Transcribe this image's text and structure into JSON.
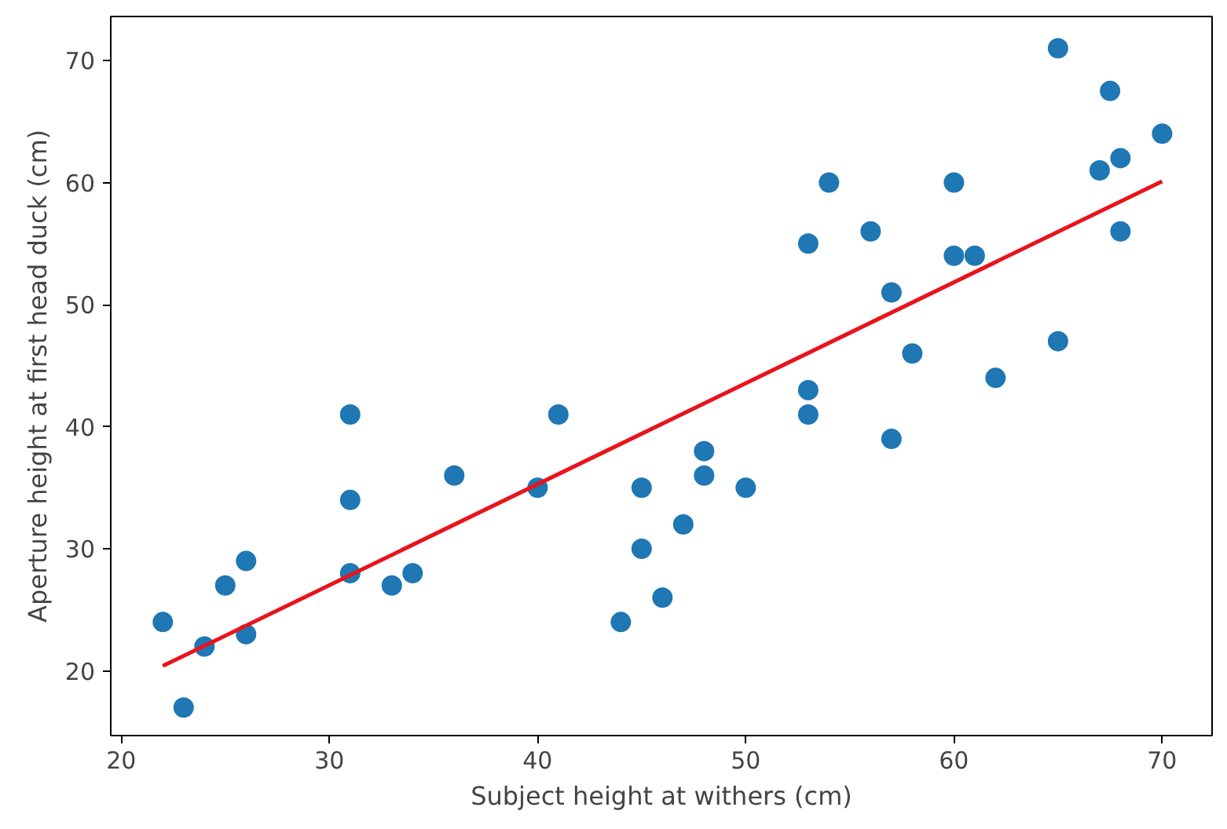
{
  "chart_data": {
    "type": "scatter",
    "xlabel": "Subject height at withers (cm)",
    "ylabel": "Aperture height at first head duck (cm)",
    "xlim": [
      19.5,
      72.4
    ],
    "ylim": [
      14.7,
      73.6
    ],
    "xticks": [
      20,
      30,
      40,
      50,
      60,
      70
    ],
    "yticks": [
      20,
      30,
      40,
      50,
      60,
      70
    ],
    "grid": false,
    "series": [
      {
        "marker": "circle",
        "color": "#1f77b4",
        "x": [
          22,
          23,
          24,
          25,
          26,
          26,
          31,
          31,
          31,
          33,
          34,
          36,
          40,
          41,
          44,
          45,
          45,
          46,
          47,
          48,
          48,
          50,
          53,
          53,
          53,
          54,
          56,
          57,
          57,
          58,
          60,
          60,
          61,
          62,
          65,
          65,
          67,
          67.5,
          68,
          68,
          70
        ],
        "values": [
          24,
          17,
          22,
          27,
          29,
          23,
          41,
          34,
          28,
          27,
          28,
          36,
          35,
          41,
          24,
          35,
          30,
          26,
          32,
          38,
          36,
          35,
          55,
          43,
          41,
          60,
          56,
          51,
          39,
          46,
          60,
          54,
          54,
          44,
          71,
          47,
          61,
          67.5,
          62,
          56,
          64
        ]
      },
      {
        "type": "line",
        "marker": "none",
        "color": "#e8141c",
        "x": [
          22,
          70
        ],
        "values": [
          20.4,
          60.1
        ]
      }
    ]
  }
}
